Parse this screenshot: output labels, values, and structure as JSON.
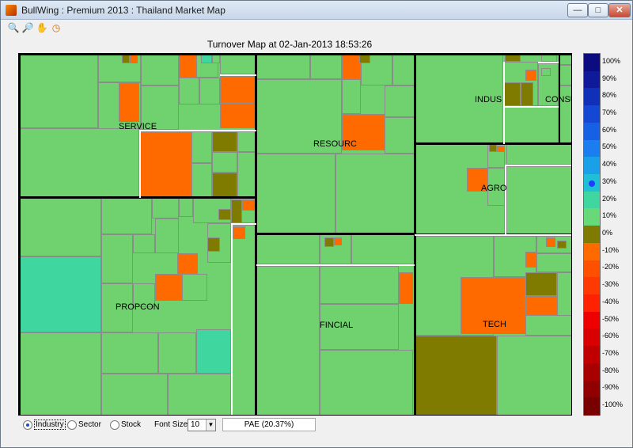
{
  "window": {
    "title": "BullWing : Premium 2013 : Thailand Market Map",
    "minimize": "—",
    "maximize": "□",
    "close": "✕"
  },
  "toolbar": {
    "tools": [
      {
        "name": "zoom-in-icon",
        "glyph": "🔍"
      },
      {
        "name": "zoom-out-icon",
        "glyph": "🔎"
      },
      {
        "name": "pan-hand-icon",
        "glyph": "✋"
      },
      {
        "name": "refresh-clock-icon",
        "glyph": "◷"
      }
    ]
  },
  "map": {
    "title": "Turnover Map at 02-Jan-2013 18:53:26",
    "sectors": [
      "SERVICE",
      "RESOURC",
      "INDUS",
      "CONSUMP",
      "AGRO",
      "PROPCON",
      "FINCIAL",
      "TECH"
    ]
  },
  "colorscale": {
    "labels": [
      "100%",
      "90%",
      "80%",
      "70%",
      "60%",
      "50%",
      "40%",
      "30%",
      "20%",
      "10%",
      "0%",
      "-10%",
      "-20%",
      "-30%",
      "-40%",
      "-50%",
      "-60%",
      "-70%",
      "-80%",
      "-90%",
      "-100%"
    ],
    "colors": [
      "#0c0c80",
      "#0f1a9a",
      "#1030b8",
      "#1448d4",
      "#1660e6",
      "#1a7ef0",
      "#1aa0e8",
      "#20bfd8",
      "#3fd6a0",
      "#67d978",
      "#7f7a00",
      "#ff6a00",
      "#ff5000",
      "#ff3a00",
      "#ff2200",
      "#ee0000",
      "#d80000",
      "#c00000",
      "#a80000",
      "#900000",
      "#7a0000"
    ]
  },
  "controls": {
    "options": [
      "Industry",
      "Sector",
      "Stock"
    ],
    "selected": "Industry",
    "font_size_label": "Font Size :",
    "font_size_value": "10",
    "info": "PAE  (20.37%)"
  }
}
